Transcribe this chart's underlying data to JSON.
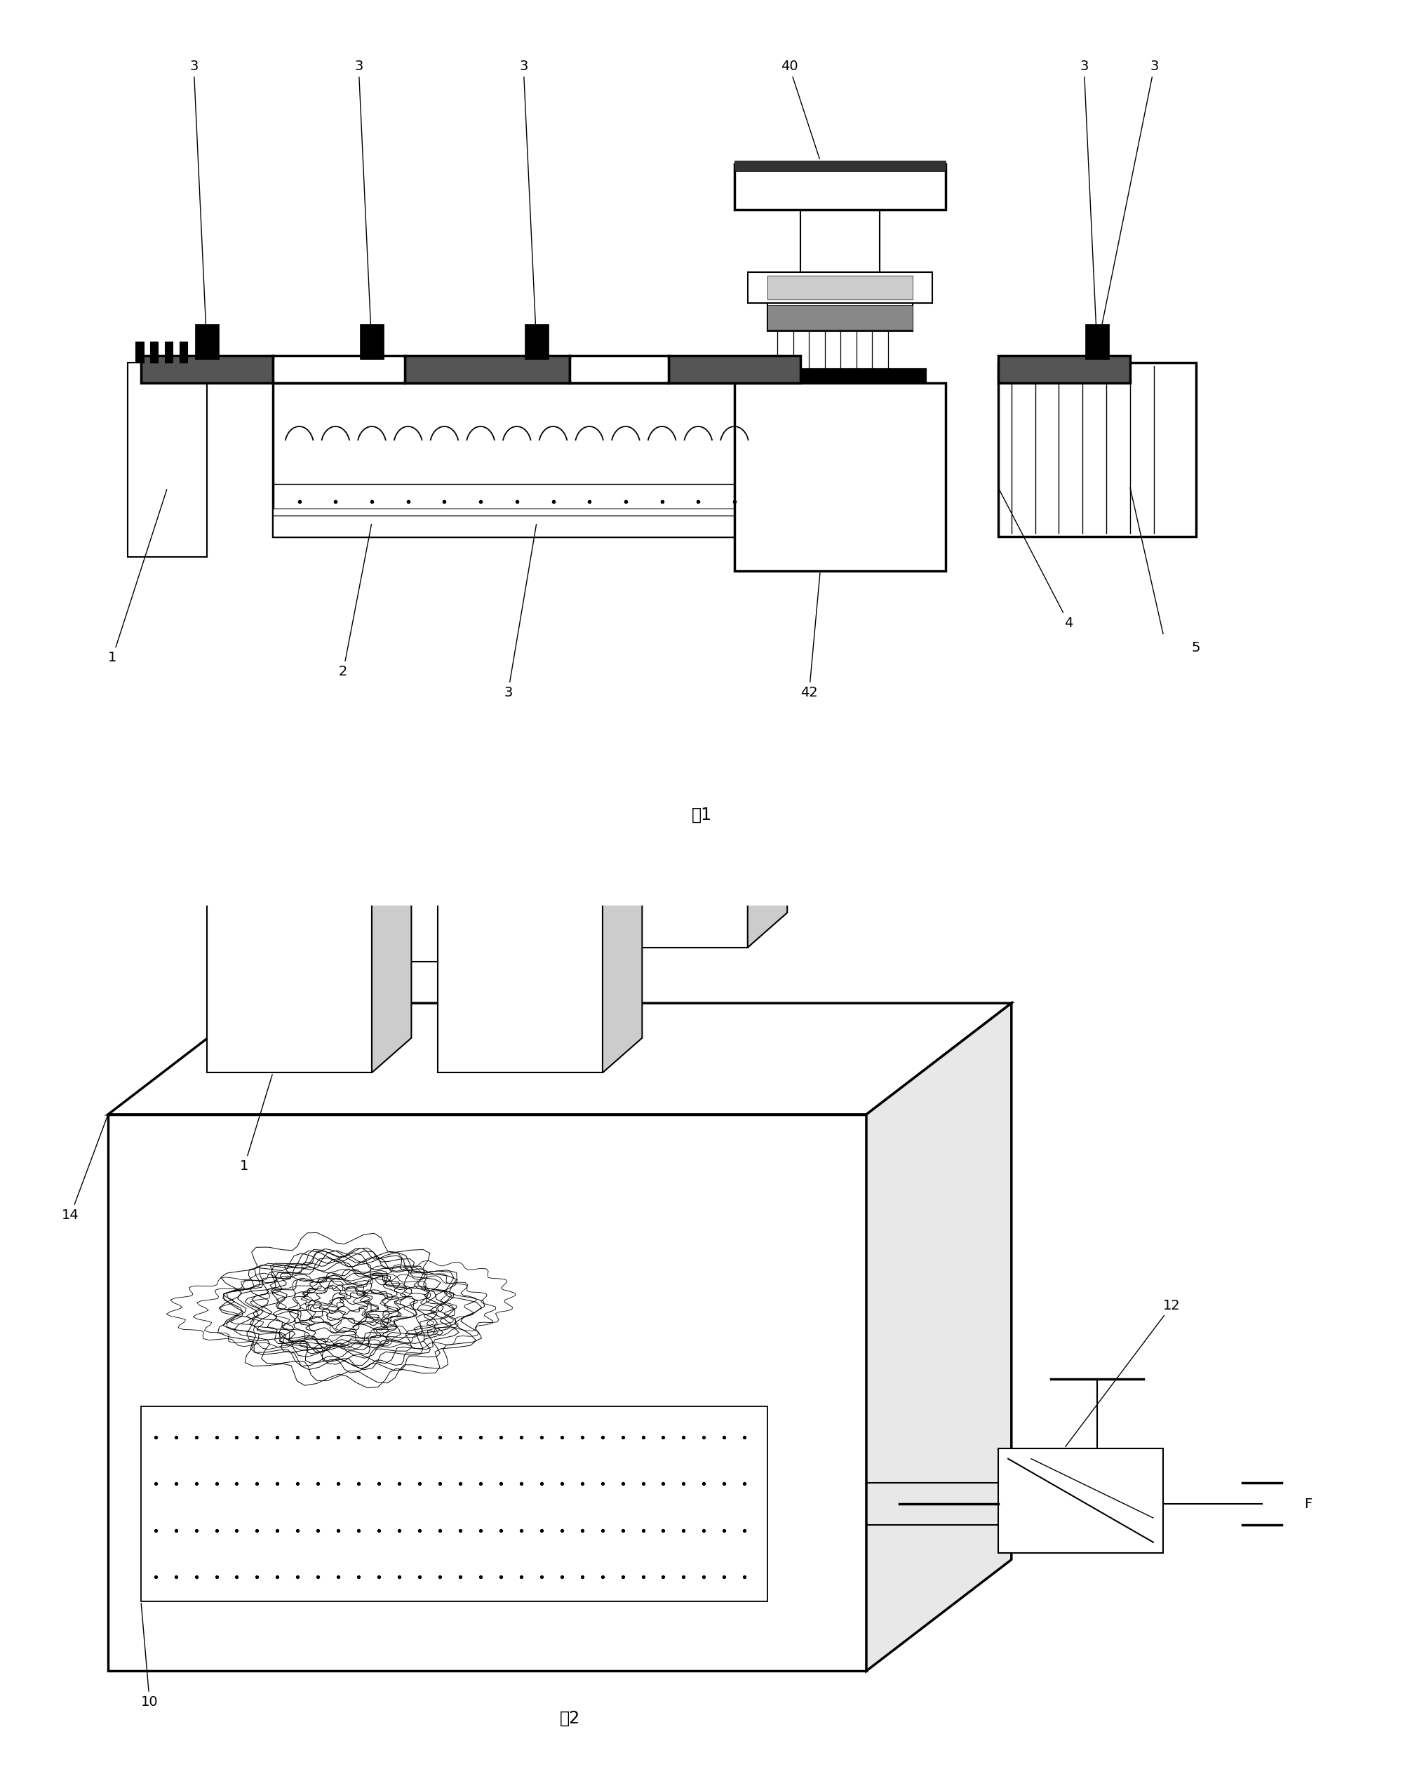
{
  "fig_width": 20.0,
  "fig_height": 25.32,
  "bg_color": "#ffffff",
  "line_color": "#000000",
  "fig1_caption": "图1",
  "fig2_caption": "图2"
}
